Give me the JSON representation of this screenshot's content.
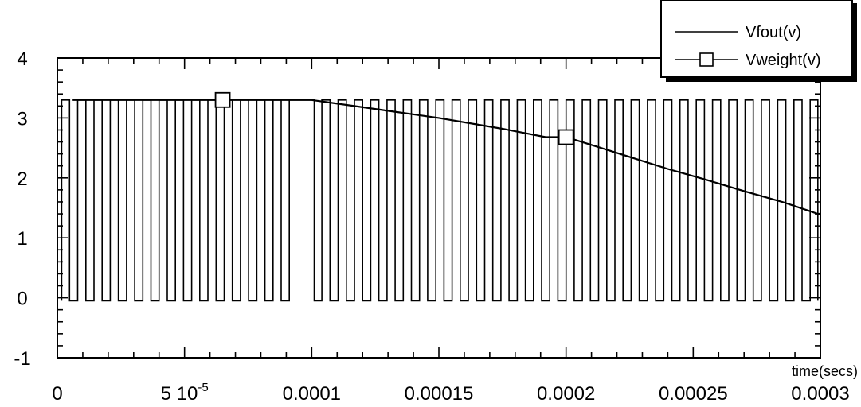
{
  "chart_data": {
    "type": "line",
    "title": "",
    "xlabel": "time(secs)",
    "ylabel": "",
    "xlim": [
      0,
      0.0003
    ],
    "ylim": [
      -1,
      4
    ],
    "x_ticks": [
      {
        "value": 0,
        "label": "0"
      },
      {
        "value": 5e-05,
        "label": "5 10",
        "exp": "-5"
      },
      {
        "value": 0.0001,
        "label": "0.0001"
      },
      {
        "value": 0.00015,
        "label": "0.00015"
      },
      {
        "value": 0.0002,
        "label": "0.0002"
      },
      {
        "value": 0.00025,
        "label": "0.00025"
      },
      {
        "value": 0.0003,
        "label": "0.0003"
      }
    ],
    "y_ticks": [
      {
        "value": -1,
        "label": "-1"
      },
      {
        "value": 0,
        "label": "0"
      },
      {
        "value": 1,
        "label": "1"
      },
      {
        "value": 2,
        "label": "2"
      },
      {
        "value": 3,
        "label": "3"
      },
      {
        "value": 4,
        "label": "4"
      }
    ],
    "grid": false,
    "legend_position": "top-right",
    "series": [
      {
        "name": "Vfout(v)",
        "style": "solid",
        "color": "#000000",
        "low_level": -0.05,
        "high_level": 3.3,
        "pulse_edges": [
          1.7e-06,
          4.8e-06,
          8e-06,
          1.12e-05,
          1.44e-05,
          1.76e-05,
          2.08e-05,
          2.4e-05,
          2.72e-05,
          3.04e-05,
          3.36e-05,
          3.68e-05,
          4e-05,
          4.32e-05,
          4.64e-05,
          4.96e-05,
          5.28e-05,
          5.6e-05,
          5.92e-05,
          6.24e-05,
          6.56e-05,
          6.88e-05,
          7.2e-05,
          7.52e-05,
          7.84e-05,
          8.16e-05,
          8.48e-05,
          8.8e-05,
          9.12e-05,
          0.000101,
          0.000104,
          0.0001072,
          0.0001104,
          0.0001136,
          0.0001168,
          0.00012,
          0.0001232,
          0.0001264,
          0.0001296,
          0.0001328,
          0.000136,
          0.0001392,
          0.0001424,
          0.0001456,
          0.0001488,
          0.000152,
          0.0001552,
          0.0001584,
          0.0001616,
          0.0001648,
          0.000168,
          0.0001712,
          0.0001744,
          0.0001776,
          0.0001808,
          0.000184,
          0.0001872,
          0.0001904,
          0.0001936,
          0.0001968,
          0.0002,
          0.0002032,
          0.0002064,
          0.0002096,
          0.0002128,
          0.000216,
          0.0002192,
          0.0002224,
          0.0002256,
          0.0002288,
          0.000232,
          0.0002352,
          0.0002384,
          0.0002416,
          0.0002448,
          0.000248,
          0.0002512,
          0.0002544,
          0.0002576,
          0.0002608,
          0.000264,
          0.0002672,
          0.0002704,
          0.0002736,
          0.0002768,
          0.00028,
          0.0002832,
          0.0002864,
          0.0002896,
          0.0002928,
          0.000296,
          0.000299
        ]
      },
      {
        "name": "Vweight(v)",
        "style": "line-square-markers",
        "color": "#000000",
        "x": [
          6e-06,
          6.5e-05,
          0.0001,
          0.000125,
          0.00015,
          0.000175,
          0.000192,
          0.0002,
          0.00021,
          0.000225,
          0.00024,
          0.000255,
          0.00027,
          0.000285,
          0.000299,
          0.0003
        ],
        "y": [
          3.3,
          3.3,
          3.3,
          3.15,
          3.0,
          2.82,
          2.68,
          2.68,
          2.55,
          2.35,
          2.15,
          1.97,
          1.78,
          1.6,
          1.4,
          1.4
        ],
        "markers_x": [
          6.5e-05,
          0.0002
        ],
        "markers_y": [
          3.3,
          2.68
        ]
      }
    ]
  }
}
